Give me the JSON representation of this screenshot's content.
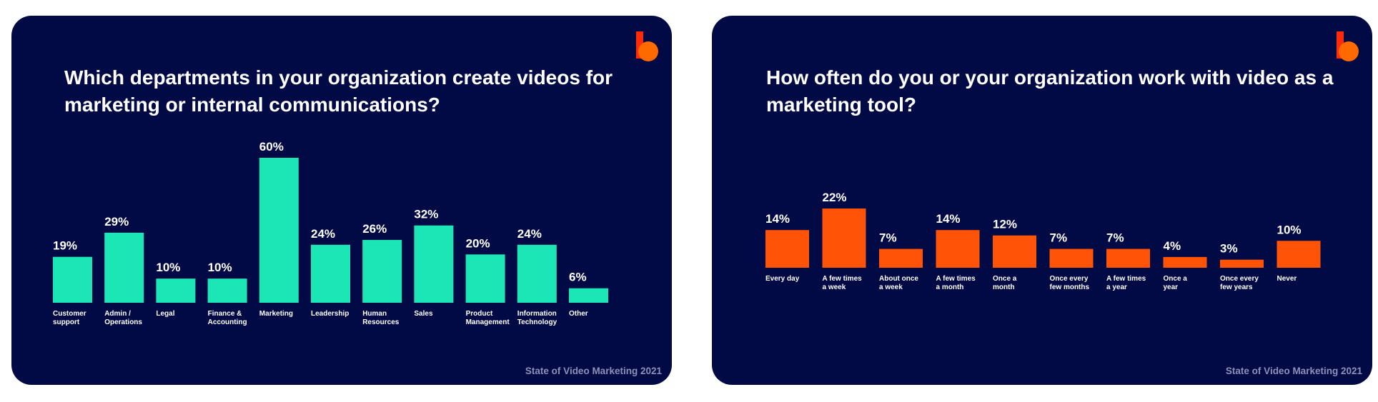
{
  "chart_data": [
    {
      "type": "bar",
      "title": "Which departments in your organization create videos for marketing or internal communications?",
      "categories": [
        [
          "Customer",
          "support"
        ],
        [
          "Admin /",
          "Operations"
        ],
        [
          "Legal"
        ],
        [
          "Finance &",
          "Accounting"
        ],
        [
          "Marketing"
        ],
        [
          "Leadership"
        ],
        [
          "Human",
          "Resources"
        ],
        [
          "Sales"
        ],
        [
          "Product",
          "Management"
        ],
        [
          "Information",
          "Technology"
        ],
        [
          "Other"
        ]
      ],
      "values": [
        19,
        29,
        10,
        10,
        60,
        24,
        26,
        32,
        20,
        24,
        6
      ],
      "value_labels": [
        "19%",
        "29%",
        "10%",
        "10%",
        "60%",
        "24%",
        "26%",
        "32%",
        "20%",
        "24%",
        "6%"
      ],
      "unit": "%",
      "ylim": [
        0,
        60
      ],
      "bar_color": "#1ce6b5",
      "footer": "State of Video Marketing 2021"
    },
    {
      "type": "bar",
      "title": "How often do you or your organization work with video as a marketing tool?",
      "categories": [
        [
          "Every day"
        ],
        [
          "A few times",
          "a week"
        ],
        [
          "About once",
          "a week"
        ],
        [
          "A few times",
          "a month"
        ],
        [
          "Once a",
          "month"
        ],
        [
          "Once every",
          "few months"
        ],
        [
          "A few times",
          "a year"
        ],
        [
          "Once a",
          "year"
        ],
        [
          "Once every",
          "few years"
        ],
        [
          "Never"
        ]
      ],
      "values": [
        14,
        22,
        7,
        14,
        12,
        7,
        7,
        4,
        3,
        10
      ],
      "value_labels": [
        "14%",
        "22%",
        "7%",
        "14%",
        "12%",
        "7%",
        "7%",
        "4%",
        "3%",
        "10%"
      ],
      "unit": "%",
      "ylim": [
        0,
        22
      ],
      "bar_color": "#ff5407",
      "footer": "State of Video Marketing 2021"
    }
  ],
  "colors": {
    "card_bg": "#020a45",
    "logo_back": "#ff2a0a",
    "logo_front": "#ff7a00"
  }
}
